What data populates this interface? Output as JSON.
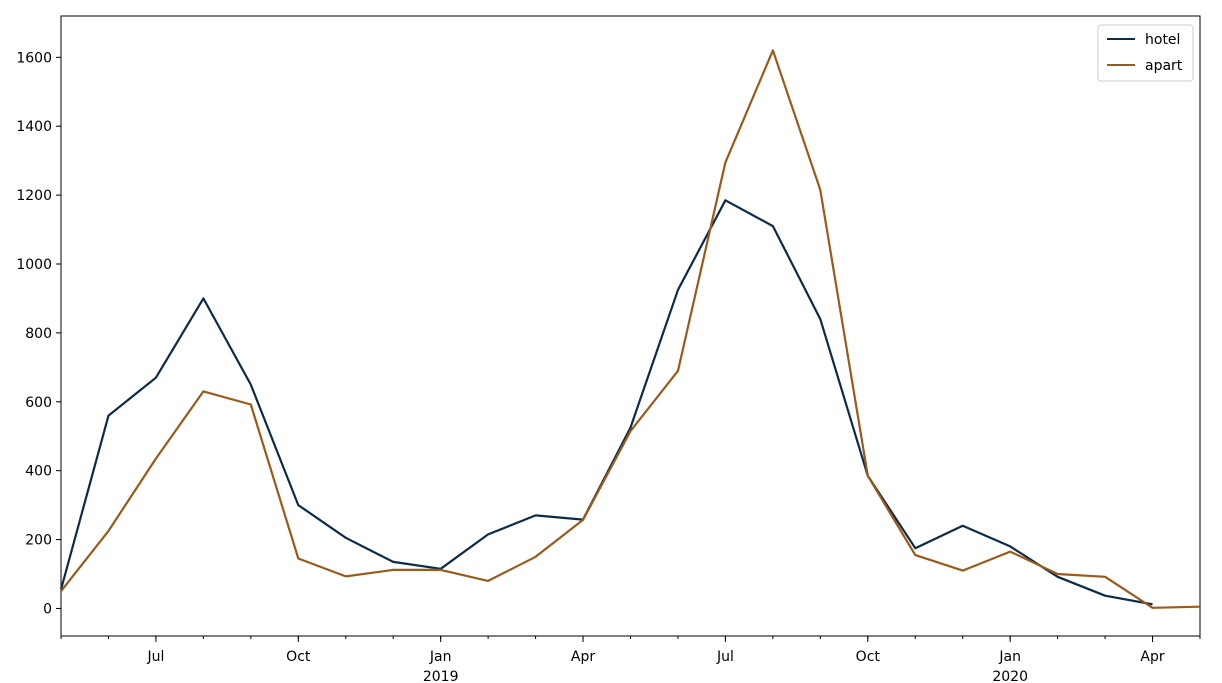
{
  "chart_data": {
    "type": "line",
    "title": "",
    "xlabel": "",
    "ylabel": "",
    "x": [
      "2018-05",
      "2018-06",
      "2018-07",
      "2018-08",
      "2018-09",
      "2018-10",
      "2018-11",
      "2018-12",
      "2019-01",
      "2019-02",
      "2019-03",
      "2019-04",
      "2019-05",
      "2019-06",
      "2019-07",
      "2019-08",
      "2019-09",
      "2019-10",
      "2019-11",
      "2019-12",
      "2020-01",
      "2020-02",
      "2020-03",
      "2020-04",
      "2020-05"
    ],
    "ylim": [
      -80,
      1720
    ],
    "yticks": [
      0,
      200,
      400,
      600,
      800,
      1000,
      1200,
      1400,
      1600
    ],
    "xticks": [
      {
        "at": "2018-07",
        "label": "Jul",
        "sub": ""
      },
      {
        "at": "2018-10",
        "label": "Oct",
        "sub": ""
      },
      {
        "at": "2019-01",
        "label": "Jan",
        "sub": "2019"
      },
      {
        "at": "2019-04",
        "label": "Apr",
        "sub": ""
      },
      {
        "at": "2019-07",
        "label": "Jul",
        "sub": ""
      },
      {
        "at": "2019-10",
        "label": "Oct",
        "sub": ""
      },
      {
        "at": "2020-01",
        "label": "Jan",
        "sub": "2020"
      },
      {
        "at": "2020-04",
        "label": "Apr",
        "sub": ""
      }
    ],
    "series": [
      {
        "name": "hotel",
        "color": "#0d2a4a",
        "values": [
          55,
          560,
          670,
          900,
          650,
          300,
          205,
          135,
          115,
          215,
          270,
          258,
          525,
          925,
          1185,
          1110,
          840,
          385,
          175,
          240,
          180,
          92,
          37,
          12,
          null
        ]
      },
      {
        "name": "apart",
        "color": "#9a5a1a",
        "values": [
          50,
          225,
          435,
          630,
          592,
          145,
          93,
          112,
          112,
          80,
          150,
          257,
          515,
          690,
          1295,
          1620,
          1215,
          385,
          155,
          110,
          165,
          100,
          92,
          2,
          5
        ]
      }
    ],
    "legend": "top-right",
    "grid": false
  }
}
